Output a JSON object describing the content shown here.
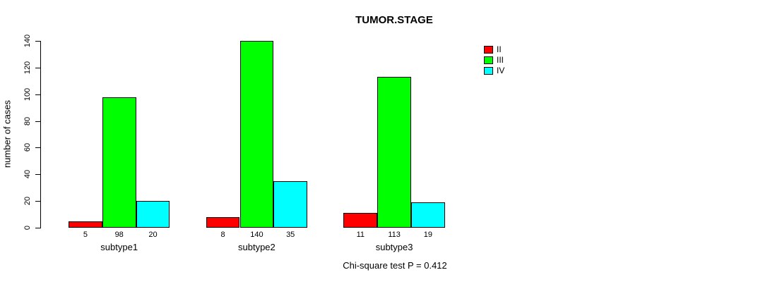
{
  "title": "TUMOR.STAGE",
  "footer": {
    "text": "Chi-square test P = 0.412"
  },
  "chart_data": {
    "type": "bar",
    "title": "TUMOR.STAGE",
    "xlabel": "",
    "ylabel": "number of cases",
    "ylim": [
      0,
      140
    ],
    "yticks": [
      0,
      20,
      40,
      60,
      80,
      100,
      120,
      140
    ],
    "grid": false,
    "legend_position": "top-right",
    "categories": [
      "subtype1",
      "subtype2",
      "subtype3"
    ],
    "series": [
      {
        "name": "II",
        "color": "#ff0000",
        "values": [
          5,
          8,
          11
        ]
      },
      {
        "name": "III",
        "color": "#00ff00",
        "values": [
          98,
          140,
          113
        ]
      },
      {
        "name": "IV",
        "color": "#00ffff",
        "values": [
          20,
          35,
          19
        ]
      }
    ],
    "annotation": "Chi-square test P = 0.412"
  }
}
